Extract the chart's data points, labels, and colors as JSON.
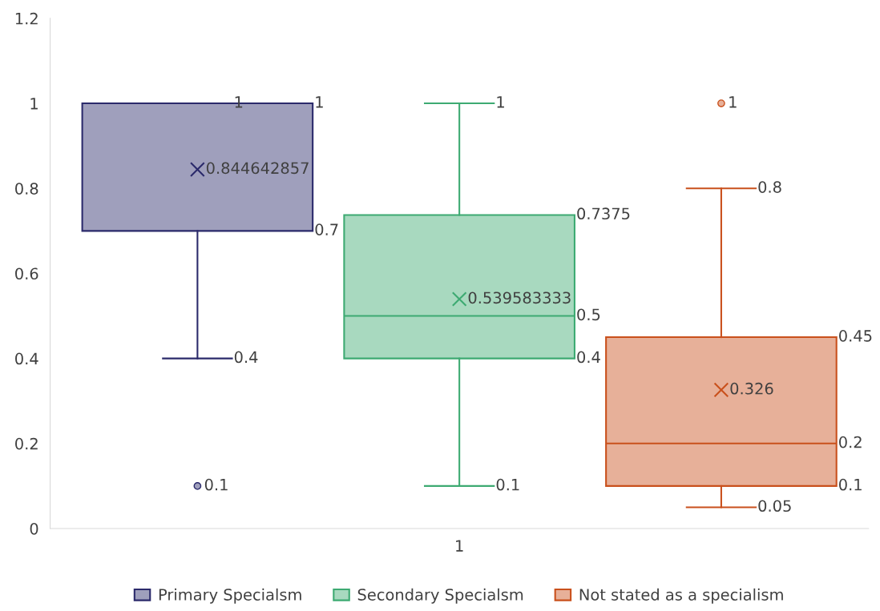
{
  "chart_data": {
    "type": "box",
    "categories": [
      "1"
    ],
    "series": [
      {
        "name": "Primary Specialsm",
        "color": "#2b2a6b",
        "boxes": [
          {
            "low": 0.4,
            "q1": 0.7,
            "median": 1,
            "q3": 1,
            "high": 1,
            "mean": 0.844642857,
            "outliers": [
              0.1
            ]
          }
        ],
        "value_labels": [
          [
            "0.4",
            "0.7",
            null,
            "1",
            "1",
            "0.844642857",
            "0.1"
          ]
        ]
      },
      {
        "name": "Secondary Specialsm",
        "color": "#3daa72",
        "boxes": [
          {
            "low": 0.1,
            "q1": 0.4,
            "median": 0.5,
            "q3": 0.7375,
            "high": 1,
            "mean": 0.539583333
          }
        ],
        "value_labels": [
          [
            "0.1",
            "0.4",
            "0.5",
            "0.7375",
            "1",
            "0.539583333"
          ]
        ]
      },
      {
        "name": "Not stated as a specialism",
        "color": "#c9501c",
        "boxes": [
          {
            "low": 0.05,
            "q1": 0.1,
            "median": 0.2,
            "q3": 0.45,
            "high": 0.8,
            "mean": 0.326,
            "outliers": [
              1
            ]
          }
        ],
        "value_labels": [
          [
            "0.05",
            "0.1",
            "0.2",
            "0.45",
            "0.8",
            "0.326",
            "1"
          ]
        ]
      }
    ],
    "ylim": [
      0,
      1.2
    ],
    "yticks": [
      0,
      0.2,
      0.4,
      0.6,
      0.8,
      1,
      1.2
    ],
    "data_labels": true,
    "grid": false,
    "legend": "bottom"
  }
}
